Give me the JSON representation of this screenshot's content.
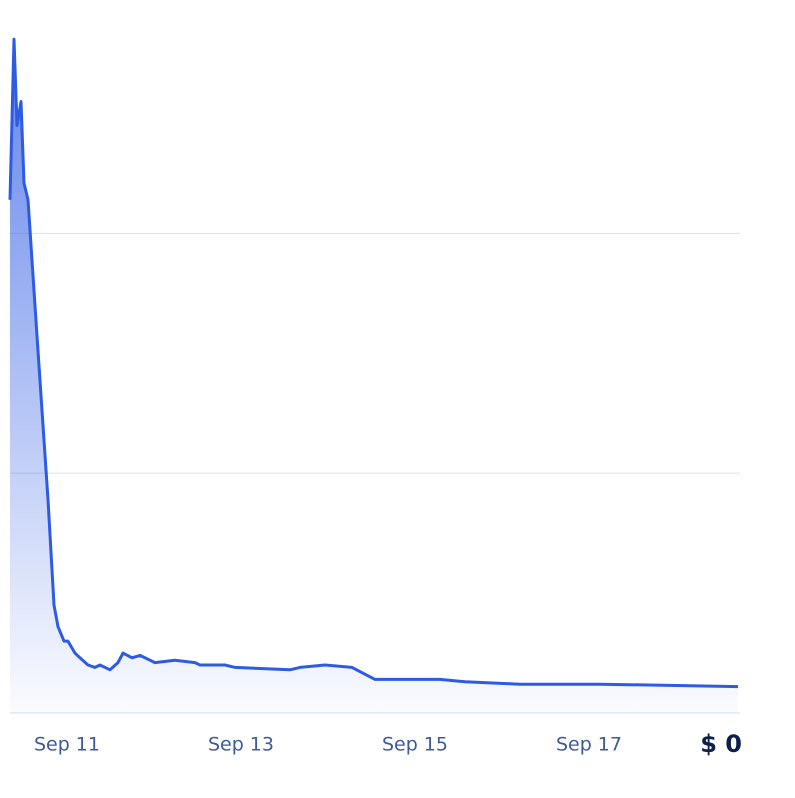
{
  "chart_data": {
    "type": "line",
    "x": [
      10.345,
      10.391,
      10.425,
      10.471,
      10.506,
      10.552,
      10.667,
      10.782,
      10.851,
      10.897,
      10.966,
      11.011,
      11.092,
      11.149,
      11.241,
      11.322,
      11.379,
      11.494,
      11.586,
      11.644,
      11.747,
      11.839,
      11.954,
      12.011,
      12.241,
      12.471,
      12.529,
      12.816,
      12.931,
      13.563,
      13.678,
      13.966,
      14.276,
      14.54,
      15.287,
      15.575,
      16.207,
      17.126,
      18.713
    ],
    "series": [
      {
        "color": "#2d5be3",
        "values": [
          2.14,
          2.81,
          2.45,
          2.55,
          2.21,
          2.14,
          1.51,
          0.89,
          0.45,
          0.36,
          0.3,
          0.3,
          0.25,
          0.23,
          0.2,
          0.19,
          0.2,
          0.18,
          0.21,
          0.25,
          0.23,
          0.24,
          0.22,
          0.21,
          0.22,
          0.21,
          0.2,
          0.2,
          0.19,
          0.18,
          0.19,
          0.2,
          0.19,
          0.14,
          0.14,
          0.13,
          0.12,
          0.12,
          0.11
        ]
      }
    ],
    "xlim": [
      10.345,
      18.736
    ],
    "xticks": [
      {
        "value": 11,
        "label": "Sep 11"
      },
      {
        "value": 13,
        "label": "Sep 13"
      },
      {
        "value": 15,
        "label": "Sep 15"
      },
      {
        "value": 17,
        "label": "Sep 17"
      }
    ],
    "ylim": [
      0,
      2.89
    ],
    "yticks": [
      {
        "value": 0,
        "label": "$ 0"
      }
    ],
    "ygrid": [
      0,
      1,
      2
    ],
    "area_fill": true
  }
}
